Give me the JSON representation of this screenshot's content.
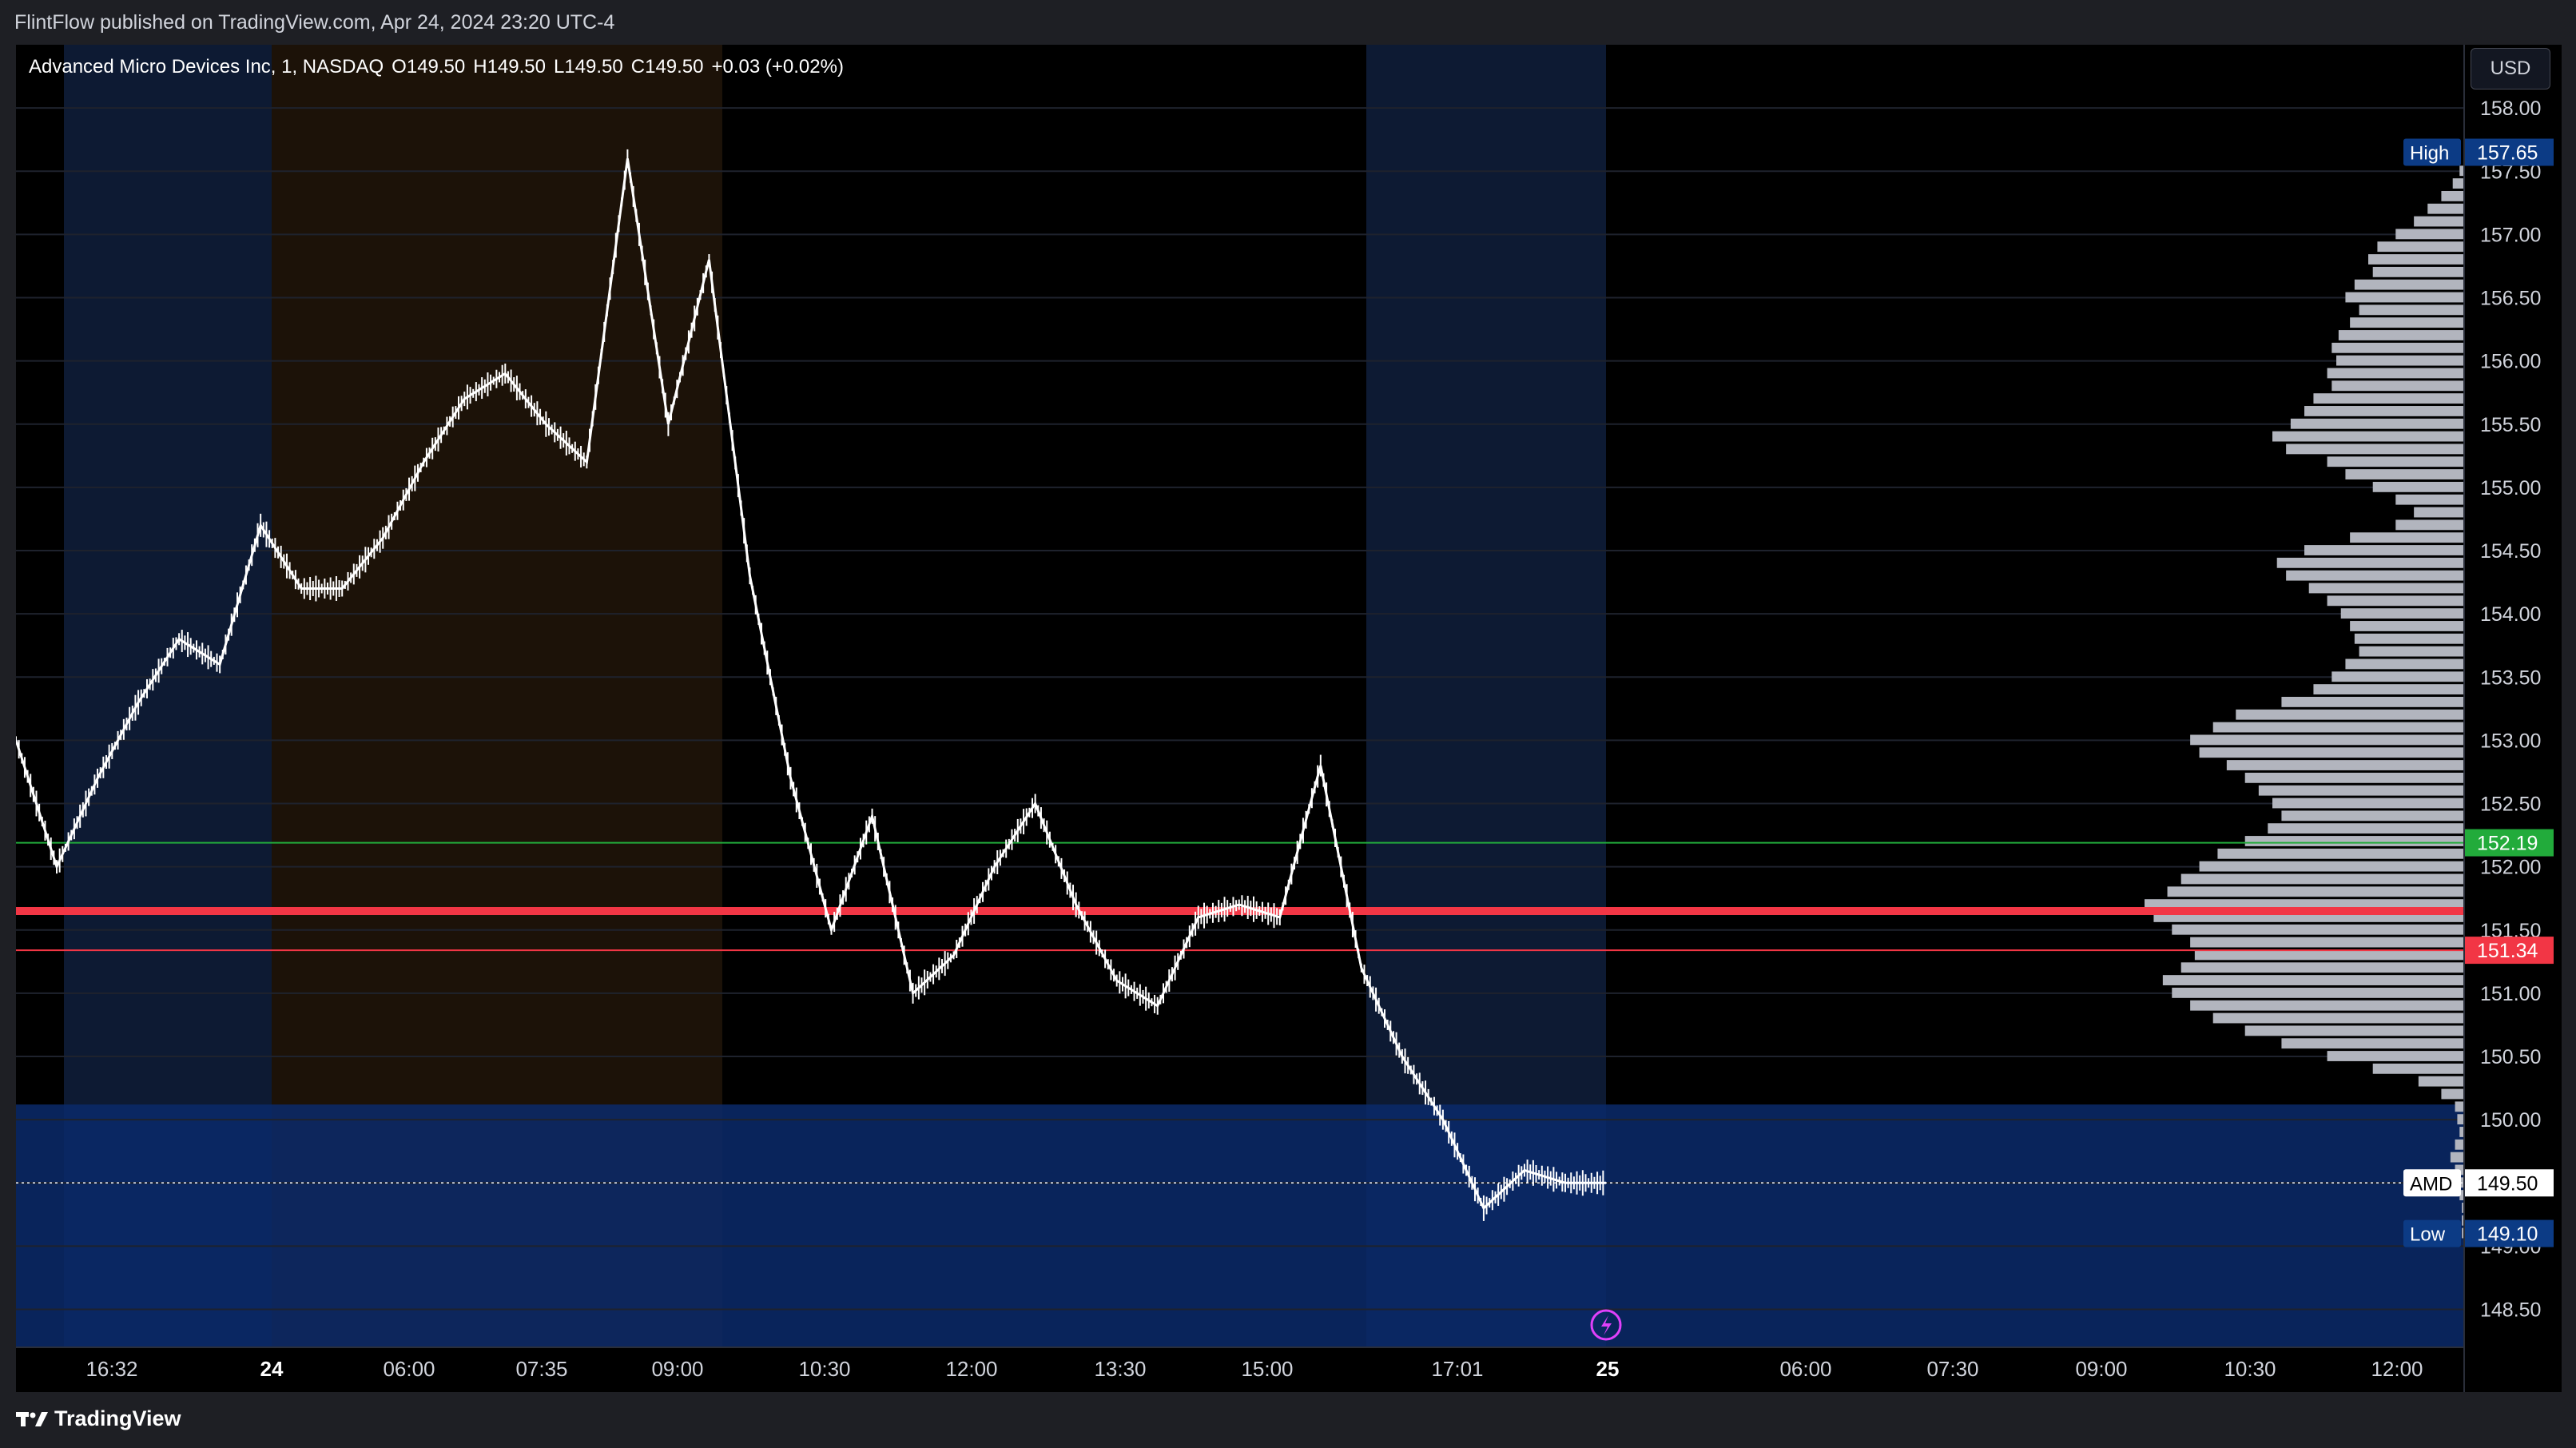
{
  "publisher_line": "FlintFlow published on TradingView.com, Apr 24, 2024 23:20 UTC-4",
  "symbol": {
    "name": "Advanced Micro Devices Inc, 1, NASDAQ",
    "open": "O149.50",
    "high": "H149.50",
    "low": "L149.50",
    "close": "C149.50",
    "change": "+0.03 (+0.02%)"
  },
  "currency_label": "USD",
  "footer_logo_text": "TradingView",
  "colors": {
    "background": "#000000",
    "price_line": "#ffffff",
    "session_blue": "#0d1a33",
    "session_orange": "#1c1208",
    "zone_blue": "#0b2a6b",
    "red_level": "#f23645",
    "green_level": "#22ab3b",
    "volume_profile": "#b2b5be",
    "accent_blue": "#2962ff"
  },
  "chart_data": {
    "type": "line",
    "title": "",
    "xlabel": "",
    "ylabel": "",
    "ylim": [
      148.2,
      158.5
    ],
    "y_ticks": [
      "158.00",
      "157.50",
      "157.00",
      "156.50",
      "156.00",
      "155.50",
      "155.00",
      "154.50",
      "154.00",
      "153.50",
      "153.00",
      "152.50",
      "152.00",
      "151.50",
      "151.00",
      "150.50",
      "150.00",
      "149.50",
      "149.00",
      "148.50"
    ],
    "x_tick_labels": [
      "16:32",
      "24",
      "06:00",
      "07:35",
      "09:00",
      "10:30",
      "12:00",
      "13:30",
      "15:00",
      "17:01",
      "25",
      "06:00",
      "07:30",
      "09:00",
      "10:30",
      "12:00"
    ],
    "series": [
      {
        "x": [
          "16:00",
          "16:32",
          "17:30",
          "18:30",
          "19:30",
          "20:00",
          "24 04:00",
          "05:00",
          "06:00",
          "06:45",
          "07:35",
          "08:15",
          "08:45",
          "09:00",
          "09:20",
          "09:30",
          "09:40",
          "10:00",
          "10:30",
          "11:00",
          "11:30",
          "12:00",
          "12:30",
          "13:00",
          "13:30",
          "13:50",
          "14:10",
          "14:30",
          "15:00",
          "15:15",
          "15:30",
          "16:00",
          "16:05",
          "16:10",
          "16:30",
          "17:01",
          "17:30",
          "18:00",
          "19:00",
          "20:00"
        ],
        "values": [
          153.0,
          152.0,
          152.7,
          153.3,
          153.8,
          153.6,
          154.7,
          154.2,
          154.2,
          154.6,
          155.2,
          155.7,
          155.9,
          155.5,
          155.2,
          157.6,
          155.5,
          156.8,
          154.3,
          152.7,
          151.5,
          152.4,
          151.0,
          151.3,
          152.0,
          152.5,
          151.7,
          151.1,
          150.9,
          151.6,
          151.7,
          151.6,
          152.8,
          151.2,
          150.5,
          150.0,
          149.3,
          149.6,
          149.5,
          149.5
        ]
      }
    ],
    "volume_profile": {
      "prices": [
        157.5,
        157.4,
        157.3,
        157.2,
        157.1,
        157.0,
        156.9,
        156.8,
        156.7,
        156.6,
        156.5,
        156.4,
        156.3,
        156.2,
        156.1,
        156.0,
        155.9,
        155.8,
        155.7,
        155.6,
        155.5,
        155.4,
        155.3,
        155.2,
        155.1,
        155.0,
        154.9,
        154.8,
        154.7,
        154.6,
        154.5,
        154.4,
        154.3,
        154.2,
        154.1,
        154.0,
        153.9,
        153.8,
        153.7,
        153.6,
        153.5,
        153.4,
        153.3,
        153.2,
        153.1,
        153.0,
        152.9,
        152.8,
        152.7,
        152.6,
        152.5,
        152.4,
        152.3,
        152.2,
        152.1,
        152.0,
        151.9,
        151.8,
        151.7,
        151.6,
        151.5,
        151.4,
        151.3,
        151.2,
        151.1,
        151.0,
        150.9,
        150.8,
        150.7,
        150.6,
        150.5,
        150.4,
        150.3,
        150.2,
        150.1,
        150.0,
        149.9,
        149.8,
        149.7,
        149.6,
        149.5,
        149.4,
        149.3,
        149.2,
        149.1
      ],
      "volumes": [
        2,
        5,
        10,
        16,
        22,
        30,
        38,
        42,
        40,
        48,
        52,
        46,
        50,
        55,
        58,
        56,
        60,
        58,
        66,
        70,
        76,
        84,
        78,
        60,
        52,
        40,
        30,
        22,
        30,
        50,
        70,
        82,
        78,
        68,
        60,
        54,
        50,
        48,
        46,
        52,
        58,
        66,
        80,
        100,
        110,
        120,
        116,
        104,
        96,
        90,
        84,
        80,
        86,
        96,
        108,
        116,
        124,
        130,
        140,
        136,
        128,
        120,
        118,
        124,
        132,
        128,
        120,
        110,
        96,
        80,
        60,
        40,
        20,
        10,
        4,
        3,
        2,
        4,
        6,
        4,
        3,
        2,
        1,
        1,
        1
      ]
    },
    "levels": [
      {
        "price": 152.19,
        "label": "152.19",
        "color": "green"
      },
      {
        "price": 151.65,
        "label": "",
        "color": "red-thick"
      },
      {
        "price": 151.34,
        "label": "151.34",
        "color": "red"
      }
    ],
    "markers": [
      {
        "name": "High",
        "value": "157.65"
      },
      {
        "name": "AMD",
        "value": "149.50"
      },
      {
        "name": "Low",
        "value": "149.10"
      }
    ]
  }
}
